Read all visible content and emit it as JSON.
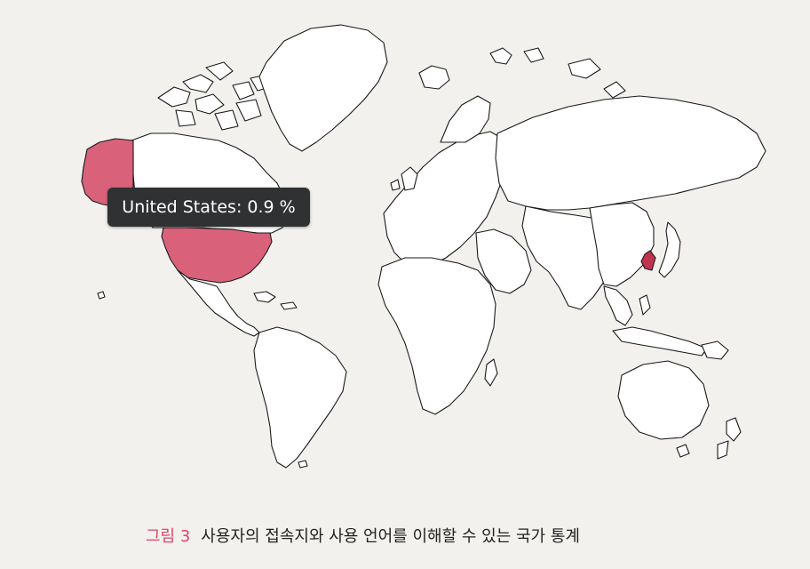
{
  "map": {
    "tooltip": {
      "country": "United States",
      "value_text": "0.9 %",
      "text": "United States: 0.9 %"
    },
    "highlighted_countries": [
      {
        "name": "United States",
        "share_percent": 0.9,
        "color": "#d9627a"
      },
      {
        "name": "South Korea",
        "share_percent": null,
        "color": "#c2334f"
      }
    ],
    "land_fill": "#ffffff",
    "border_color": "#1a1a1a"
  },
  "caption": {
    "figure_label": "그림 3",
    "text": "사용자의 접속지와 사용 언어를 이해할 수 있는 국가 통계",
    "label_color": "#e2426a"
  }
}
